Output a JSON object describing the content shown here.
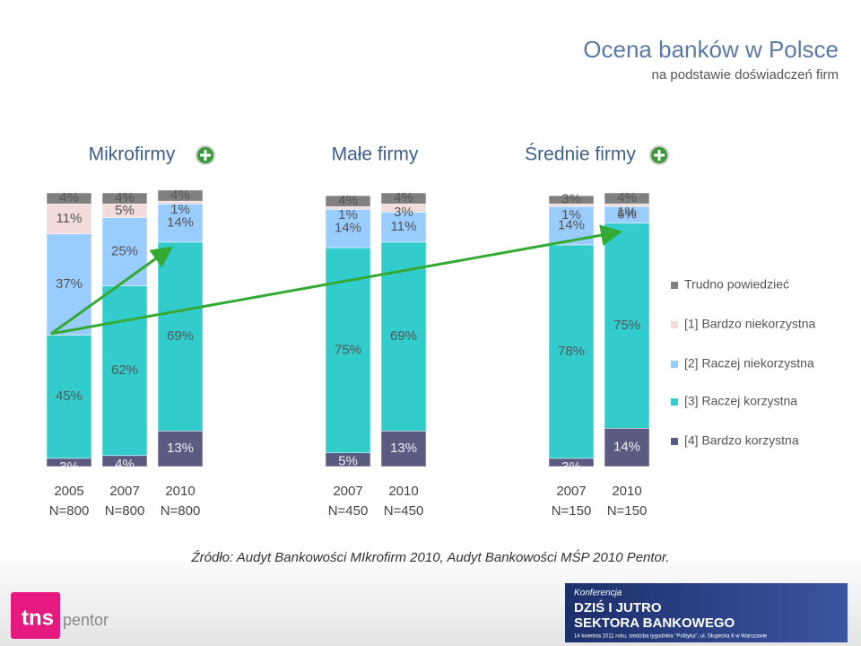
{
  "title": "Ocena banków w Polsce",
  "subtitle": "na podstawie doświadczeń firm",
  "chart_data": {
    "type": "stacked_bar",
    "groups": [
      "Mikrofirmy",
      "Małe firmy",
      "Średnie firmy"
    ],
    "categories": [
      "2005",
      "2007",
      "2010",
      "2007",
      "2010",
      "2007",
      "2010"
    ],
    "sample_sizes": [
      "N=800",
      "N=800",
      "N=800",
      "N=450",
      "N=450",
      "N=150",
      "N=150"
    ],
    "ylim": [
      0,
      100
    ],
    "series": [
      {
        "name": "[4] Bardzo korzystna",
        "color": "#5b5b82",
        "values": [
          3,
          4,
          13,
          5,
          13,
          3,
          14
        ],
        "value_labels": [
          "3%",
          "4%",
          "13%",
          "5%",
          "13%",
          "3%",
          "14%"
        ]
      },
      {
        "name": "[3] Raczej korzystna",
        "color": "#33cccc",
        "values": [
          45,
          62,
          69,
          75,
          69,
          78,
          75
        ],
        "value_labels": [
          "45%",
          "62%",
          "69%",
          "75%",
          "69%",
          "78%",
          "75%"
        ]
      },
      {
        "name": "[2] Raczej niekorzystna",
        "color": "#99ccff",
        "values": [
          37,
          25,
          14,
          14,
          11,
          14,
          6
        ],
        "value_labels": [
          "37%",
          "25%",
          "14%",
          "14%",
          "11%",
          "14%",
          "6%"
        ]
      },
      {
        "name": "[1] Bardzo niekorzystna",
        "color": "#f2dcdb",
        "values": [
          11,
          5,
          1,
          1,
          3,
          1,
          1
        ],
        "value_labels": [
          "11%",
          "5%",
          "1%",
          "1%",
          "3%",
          "1%",
          "1%"
        ]
      },
      {
        "name": "Trudno powiedzieć",
        "color": "#808080",
        "values": [
          4,
          4,
          4,
          4,
          4,
          3,
          4
        ],
        "value_labels": [
          "4%",
          "4%",
          "4%",
          "4%",
          "4%",
          "3%",
          "4%"
        ]
      }
    ]
  },
  "source": "Źródło: Audyt Bankowości MIkrofirm 2010, Audyt Bankowości MŚP 2010 Pentor.",
  "logo": {
    "brand": "tns",
    "sub": "pentor"
  },
  "banner": {
    "kicker": "Konferencja",
    "line1": "DZIŚ I JUTRO",
    "line2": "SEKTORA BANKOWEGO",
    "note": "14 kwietnia 2011 roku, siedziba tygodnika \"Polityka\", ul. Słupecka 6 w Warszawie"
  }
}
